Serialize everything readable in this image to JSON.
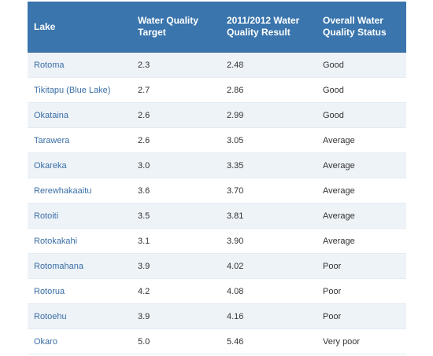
{
  "table": {
    "headers": {
      "lake": "Lake",
      "target": "Water Quality Target",
      "result": "2011/2012 Water Quality Result",
      "status": "Overall Water Quality Status"
    },
    "rows": [
      {
        "lake": "Rotoma",
        "target": "2.3",
        "result": "2.48",
        "status": "Good"
      },
      {
        "lake": "Tikitapu (Blue Lake)",
        "target": "2.7",
        "result": "2.86",
        "status": "Good"
      },
      {
        "lake": "Okataina",
        "target": "2.6",
        "result": "2.99",
        "status": "Good"
      },
      {
        "lake": "Tarawera",
        "target": "2.6",
        "result": "3.05",
        "status": "Average"
      },
      {
        "lake": "Okareka",
        "target": "3.0",
        "result": "3.35",
        "status": "Average"
      },
      {
        "lake": "Rerewhakaaitu",
        "target": "3.6",
        "result": "3.70",
        "status": "Average"
      },
      {
        "lake": "Rotoiti",
        "target": "3.5",
        "result": "3.81",
        "status": "Average"
      },
      {
        "lake": "Rotokakahi",
        "target": "3.1",
        "result": "3.90",
        "status": "Average"
      },
      {
        "lake": "Rotomahana",
        "target": "3.9",
        "result": "4.02",
        "status": "Poor"
      },
      {
        "lake": "Rotorua",
        "target": "4.2",
        "result": "4.08",
        "status": "Poor"
      },
      {
        "lake": "Rotoehu",
        "target": "3.9",
        "result": "4.16",
        "status": "Poor"
      },
      {
        "lake": "Okaro",
        "target": "5.0",
        "result": "5.46",
        "status": "Very poor"
      }
    ]
  },
  "colors": {
    "header_bg": "#3a75ad",
    "header_text": "#ffffff",
    "lake_text": "#3a6ea5",
    "row_alt_bg": "#eef3f8"
  }
}
